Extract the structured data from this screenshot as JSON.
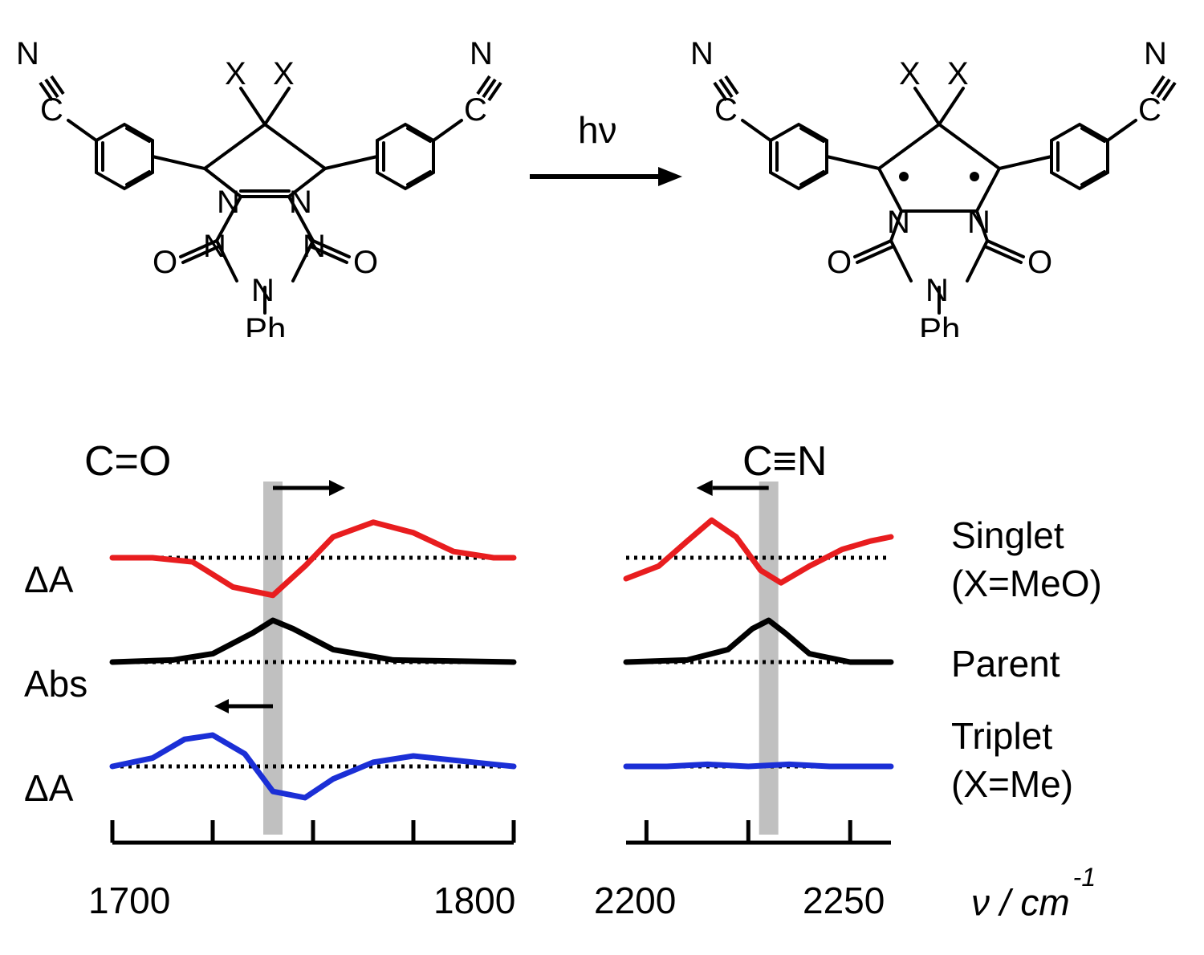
{
  "reaction": {
    "hv_label": "hν",
    "ph_label_left": "Ph",
    "ph_label_right": "Ph"
  },
  "spectra": {
    "co": {
      "region_label": "C=O",
      "xlim": [
        1700,
        1800
      ],
      "xticks": [
        1700,
        1725,
        1750,
        1775,
        1800
      ],
      "xtick_labels": [
        "1700",
        "",
        "",
        "",
        "1800"
      ],
      "parent_peak_x": 1740,
      "gray_band_color": "#c0c0c0",
      "top_arrow_dir": "right",
      "bottom_arrow_dir": "left",
      "traces": {
        "singlet": {
          "ylabel": "ΔA",
          "color": "#e81d1f",
          "points": [
            [
              1700,
              0
            ],
            [
              1710,
              0
            ],
            [
              1720,
              -2
            ],
            [
              1730,
              -14
            ],
            [
              1740,
              -18
            ],
            [
              1748,
              -4
            ],
            [
              1755,
              10
            ],
            [
              1765,
              17
            ],
            [
              1775,
              12
            ],
            [
              1785,
              3
            ],
            [
              1795,
              0
            ],
            [
              1800,
              0
            ]
          ]
        },
        "parent": {
          "ylabel": "Abs",
          "color": "#000000",
          "points": [
            [
              1700,
              0
            ],
            [
              1715,
              1
            ],
            [
              1725,
              4
            ],
            [
              1735,
              14
            ],
            [
              1740,
              20
            ],
            [
              1745,
              16
            ],
            [
              1755,
              6
            ],
            [
              1770,
              1
            ],
            [
              1800,
              0
            ]
          ]
        },
        "triplet": {
          "ylabel": "ΔA",
          "color": "#1b2fd6",
          "points": [
            [
              1700,
              0
            ],
            [
              1710,
              4
            ],
            [
              1718,
              13
            ],
            [
              1725,
              15
            ],
            [
              1733,
              6
            ],
            [
              1740,
              -12
            ],
            [
              1748,
              -15
            ],
            [
              1755,
              -6
            ],
            [
              1765,
              2
            ],
            [
              1775,
              5
            ],
            [
              1790,
              2
            ],
            [
              1800,
              0
            ]
          ]
        }
      }
    },
    "cn": {
      "region_label": "C≡N",
      "xlim": [
        2195,
        2260
      ],
      "xticks": [
        2200,
        2225,
        2250
      ],
      "xtick_labels": [
        "2200",
        "",
        "2250"
      ],
      "parent_peak_x": 2230,
      "gray_band_color": "#c0c0c0",
      "top_arrow_dir": "left",
      "traces": {
        "singlet": {
          "color": "#e81d1f",
          "points": [
            [
              2195,
              -10
            ],
            [
              2203,
              -4
            ],
            [
              2210,
              8
            ],
            [
              2216,
              18
            ],
            [
              2222,
              10
            ],
            [
              2228,
              -6
            ],
            [
              2233,
              -12
            ],
            [
              2240,
              -4
            ],
            [
              2248,
              4
            ],
            [
              2255,
              8
            ],
            [
              2260,
              10
            ]
          ]
        },
        "parent": {
          "color": "#000000",
          "points": [
            [
              2195,
              0
            ],
            [
              2210,
              1
            ],
            [
              2220,
              6
            ],
            [
              2226,
              16
            ],
            [
              2230,
              20
            ],
            [
              2234,
              14
            ],
            [
              2240,
              4
            ],
            [
              2250,
              0
            ],
            [
              2260,
              0
            ]
          ]
        },
        "triplet": {
          "color": "#1b2fd6",
          "points": [
            [
              2195,
              0
            ],
            [
              2205,
              0
            ],
            [
              2215,
              1
            ],
            [
              2225,
              0
            ],
            [
              2235,
              1
            ],
            [
              2245,
              0
            ],
            [
              2255,
              0
            ],
            [
              2260,
              0
            ]
          ]
        }
      }
    },
    "axis_unit_label": "ν / cm",
    "axis_unit_sup": "-1",
    "series_legend": {
      "singlet": {
        "line1": "Singlet",
        "line2": "(X=MeO)"
      },
      "parent": {
        "line1": "Parent"
      },
      "triplet": {
        "line1": "Triplet",
        "line2": "(X=Me)"
      }
    },
    "dotted_baseline_color": "#000000",
    "baseline_dash": "4,6",
    "line_width": 7,
    "tick_height": 28,
    "trace_row_height": 130
  },
  "styling": {
    "background_color": "#ffffff",
    "text_color": "#000000",
    "label_fontsize": 46,
    "title_fontsize": 52
  }
}
